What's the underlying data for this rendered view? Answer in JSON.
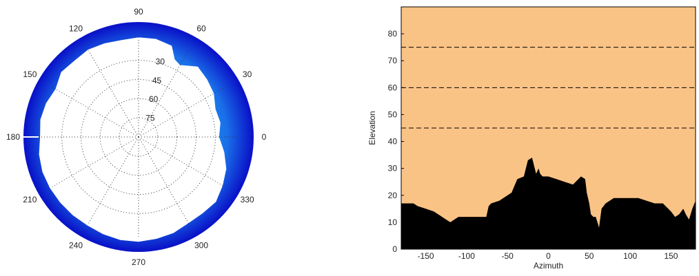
{
  "colors": {
    "sky": "#fac386",
    "terrain": "#000000",
    "polar_outer": "#0a14c8",
    "polar_mid": "#1a6fe8",
    "polar_inner": "#19e6f5",
    "grid": "#333333"
  },
  "chart_data": [
    {
      "type": "polar",
      "angle_labels": [
        "90",
        "60",
        "30",
        "0",
        "330",
        "300",
        "270",
        "240",
        "210",
        "180",
        "150",
        "120"
      ],
      "angles_deg": [
        90,
        60,
        30,
        0,
        330,
        300,
        270,
        240,
        210,
        180,
        150,
        120
      ],
      "elevation_labels": [
        "30",
        "45",
        "60",
        "75"
      ],
      "elevation_values": [
        30,
        45,
        60,
        75
      ],
      "horizon_profile": {
        "angle_deg": [
          0,
          10,
          20,
          30,
          40,
          50,
          60,
          65,
          70,
          80,
          90,
          100,
          110,
          120,
          130,
          140,
          150,
          160,
          170,
          180,
          190,
          200,
          210,
          220,
          230,
          240,
          250,
          260,
          270,
          280,
          290,
          300,
          310,
          320,
          330,
          340,
          350,
          360
        ],
        "elevation": [
          27,
          25,
          26,
          22,
          20,
          18,
          25,
          23,
          14,
          12,
          12,
          13,
          12,
          11,
          12,
          11,
          15,
          13,
          12,
          13,
          11,
          10,
          10,
          10,
          10,
          10,
          9,
          8,
          8,
          9,
          10,
          12,
          12,
          11,
          14,
          17,
          22,
          27
        ]
      }
    },
    {
      "type": "area",
      "xlabel": "Azimuth",
      "ylabel": "Elevation",
      "x_ticks": [
        -150,
        -100,
        -50,
        0,
        50,
        100,
        150
      ],
      "x_tick_labels": [
        "-150",
        "-100",
        "-50",
        "0",
        "50",
        "100",
        "150"
      ],
      "y_ticks": [
        0,
        10,
        20,
        30,
        40,
        50,
        60,
        70,
        80
      ],
      "y_tick_labels": [
        "0",
        "10",
        "20",
        "30",
        "40",
        "50",
        "60",
        "70",
        "80"
      ],
      "xlim": [
        -180,
        180
      ],
      "ylim": [
        0,
        90
      ],
      "reference_lines": [
        45,
        60,
        75
      ],
      "horizon": {
        "x": [
          -180,
          -165,
          -160,
          -150,
          -140,
          -130,
          -125,
          -120,
          -115,
          -110,
          -100,
          -90,
          -80,
          -76,
          -73,
          -70,
          -60,
          -45,
          -38,
          -30,
          -25,
          -20,
          -15,
          -12,
          -10,
          -7,
          -5,
          0,
          10,
          20,
          30,
          40,
          45,
          47,
          50,
          52,
          55,
          58,
          62,
          65,
          70,
          75,
          80,
          90,
          100,
          110,
          120,
          130,
          140,
          150,
          155,
          160,
          165,
          168,
          172,
          176,
          180
        ],
        "y": [
          17,
          17,
          16,
          15,
          14,
          12,
          11,
          10,
          11,
          12,
          12,
          12,
          12,
          12,
          16,
          17,
          18,
          21,
          26,
          27,
          33,
          34,
          28,
          30,
          28,
          27,
          27,
          27,
          26,
          25,
          24,
          27,
          26,
          21,
          17,
          13,
          12,
          12,
          8,
          15,
          17,
          18,
          19,
          19,
          19,
          19,
          18,
          17,
          17,
          14,
          12,
          13,
          15,
          13,
          11,
          15,
          18
        ]
      }
    }
  ]
}
